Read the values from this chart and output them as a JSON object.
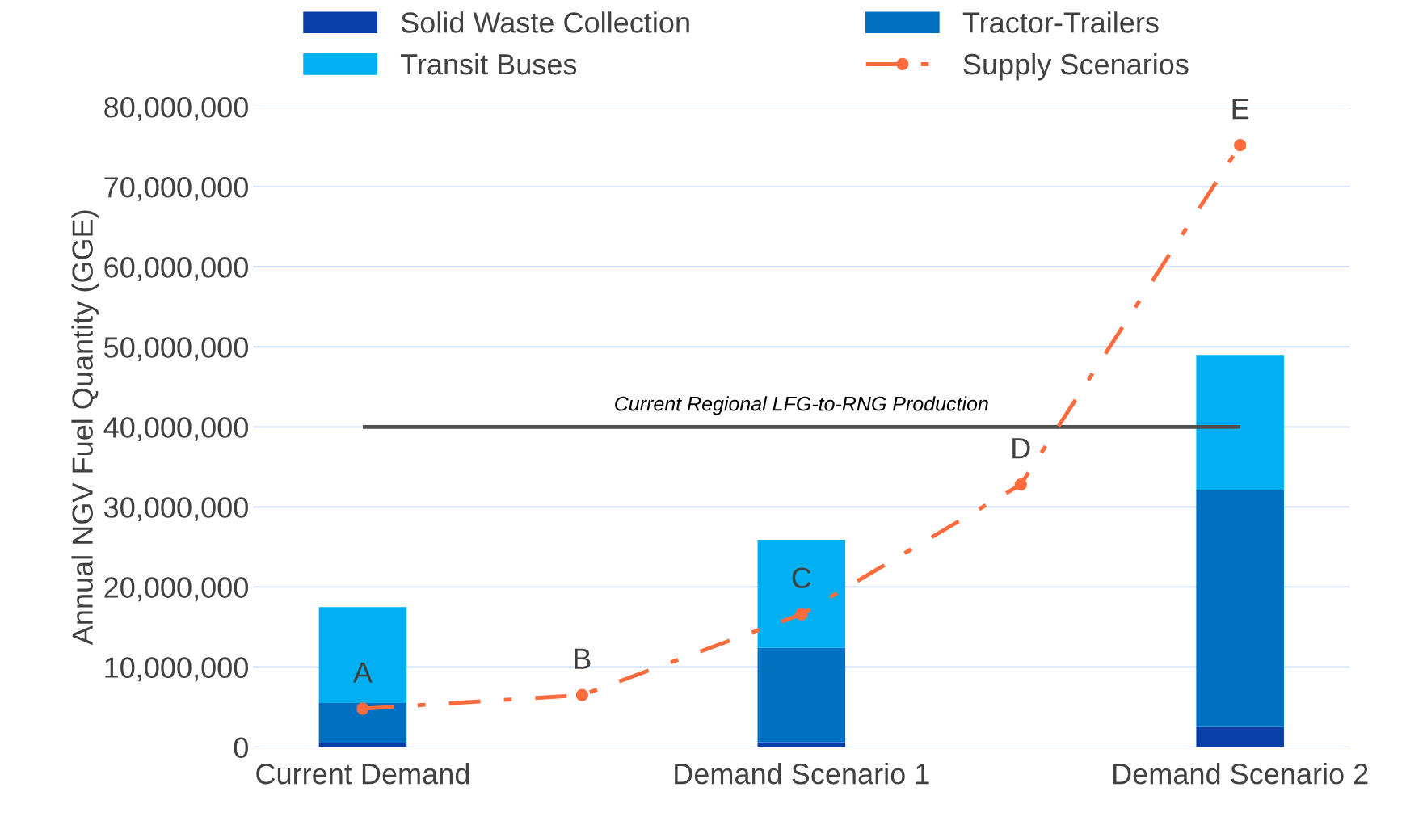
{
  "chart_data": {
    "type": "bar",
    "stacked": true,
    "ylabel": "Annual NGV Fuel Quantity (GGE)",
    "categories": [
      "Current Demand",
      null,
      "Demand Scenario 1",
      null,
      "Demand Scenario 2"
    ],
    "series": [
      {
        "name": "Solid Waste Collection",
        "color": "#0a3fa8",
        "values": [
          500000,
          null,
          600000,
          null,
          2500000
        ]
      },
      {
        "name": "Tractor-Trailers",
        "color": "#0070c0",
        "values": [
          5000000,
          null,
          11800000,
          null,
          29600000
        ]
      },
      {
        "name": "Transit Buses",
        "color": "#00b0f0",
        "values": [
          12000000,
          null,
          13500000,
          null,
          16900000
        ]
      },
      {
        "name": "Supply Scenarios",
        "type": "line",
        "color": "#ff6b3d",
        "values": [
          4800000,
          6500000,
          16600000,
          32800000,
          75200000
        ],
        "value_labels": [
          "A",
          "B",
          "C",
          "D",
          "E"
        ],
        "marker": "circle",
        "line_style": "dashdot"
      }
    ],
    "ref_lines": [
      {
        "axis": "y",
        "value": 40000000,
        "label": "Current Regional LFG-to-RNG Production",
        "color": "#505050"
      }
    ],
    "ylim": [
      0,
      80000000
    ],
    "yticks": [
      {
        "value": 0,
        "label": "0"
      },
      {
        "value": 10000000,
        "label": "10,000,000"
      },
      {
        "value": 20000000,
        "label": "20,000,000"
      },
      {
        "value": 30000000,
        "label": "30,000,000"
      },
      {
        "value": 40000000,
        "label": "40,000,000"
      },
      {
        "value": 50000000,
        "label": "50,000,000"
      },
      {
        "value": 60000000,
        "label": "60,000,000"
      },
      {
        "value": 70000000,
        "label": "70,000,000"
      },
      {
        "value": 80000000,
        "label": "80,000,000"
      }
    ],
    "grid": "y",
    "legend": "top"
  }
}
